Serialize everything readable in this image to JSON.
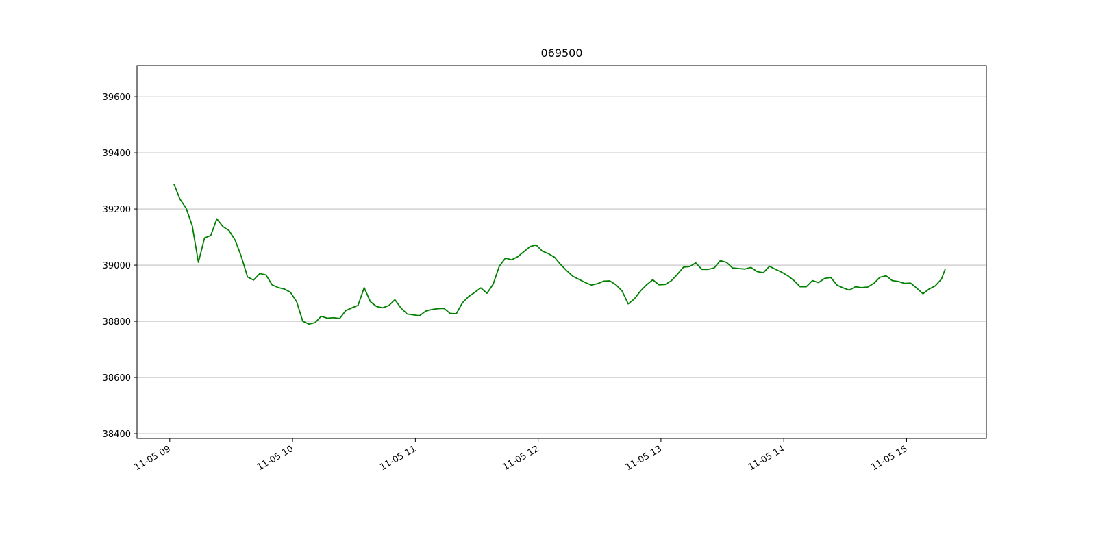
{
  "chart_data": {
    "type": "line",
    "title": "069500",
    "x": [
      "11-05 09:02",
      "11-05 09:05",
      "11-05 09:08",
      "11-05 09:11",
      "11-05 09:14",
      "11-05 09:17",
      "11-05 09:20",
      "11-05 09:23",
      "11-05 09:26",
      "11-05 09:29",
      "11-05 09:32",
      "11-05 09:35",
      "11-05 09:38",
      "11-05 09:41",
      "11-05 09:44",
      "11-05 09:47",
      "11-05 09:50",
      "11-05 09:53",
      "11-05 09:56",
      "11-05 09:59",
      "11-05 10:02",
      "11-05 10:05",
      "11-05 10:08",
      "11-05 10:11",
      "11-05 10:14",
      "11-05 10:17",
      "11-05 10:20",
      "11-05 10:23",
      "11-05 10:26",
      "11-05 10:29",
      "11-05 10:32",
      "11-05 10:35",
      "11-05 10:38",
      "11-05 10:41",
      "11-05 10:44",
      "11-05 10:47",
      "11-05 10:50",
      "11-05 10:53",
      "11-05 10:56",
      "11-05 10:59",
      "11-05 11:02",
      "11-05 11:05",
      "11-05 11:08",
      "11-05 11:11",
      "11-05 11:14",
      "11-05 11:17",
      "11-05 11:20",
      "11-05 11:23",
      "11-05 11:26",
      "11-05 11:29",
      "11-05 11:32",
      "11-05 11:35",
      "11-05 11:38",
      "11-05 11:41",
      "11-05 11:44",
      "11-05 11:47",
      "11-05 11:50",
      "11-05 11:53",
      "11-05 11:56",
      "11-05 11:59",
      "11-05 12:02",
      "11-05 12:05",
      "11-05 12:08",
      "11-05 12:11",
      "11-05 12:14",
      "11-05 12:17",
      "11-05 12:20",
      "11-05 12:23",
      "11-05 12:26",
      "11-05 12:29",
      "11-05 12:32",
      "11-05 12:35",
      "11-05 12:38",
      "11-05 12:41",
      "11-05 12:44",
      "11-05 12:47",
      "11-05 12:50",
      "11-05 12:53",
      "11-05 12:56",
      "11-05 12:59",
      "11-05 13:02",
      "11-05 13:05",
      "11-05 13:08",
      "11-05 13:11",
      "11-05 13:14",
      "11-05 13:17",
      "11-05 13:20",
      "11-05 13:23",
      "11-05 13:26",
      "11-05 13:29",
      "11-05 13:32",
      "11-05 13:35",
      "11-05 13:38",
      "11-05 13:41",
      "11-05 13:44",
      "11-05 13:47",
      "11-05 13:50",
      "11-05 13:53",
      "11-05 13:56",
      "11-05 13:59",
      "11-05 14:02",
      "11-05 14:05",
      "11-05 14:08",
      "11-05 14:11",
      "11-05 14:14",
      "11-05 14:17",
      "11-05 14:20",
      "11-05 14:23",
      "11-05 14:26",
      "11-05 14:29",
      "11-05 14:32",
      "11-05 14:35",
      "11-05 14:38",
      "11-05 14:41",
      "11-05 14:44",
      "11-05 14:47",
      "11-05 14:50",
      "11-05 14:53",
      "11-05 14:56",
      "11-05 14:59",
      "11-05 15:02",
      "11-05 15:05",
      "11-05 15:08",
      "11-05 15:11",
      "11-05 15:14",
      "11-05 15:17",
      "11-05 15:19"
    ],
    "series": [
      {
        "name": "069500",
        "color": "#008000",
        "values": [
          39290,
          39235,
          39203,
          39140,
          39010,
          39097,
          39105,
          39165,
          39137,
          39123,
          39088,
          39030,
          38958,
          38947,
          38970,
          38965,
          38930,
          38920,
          38915,
          38903,
          38870,
          38800,
          38790,
          38795,
          38818,
          38811,
          38813,
          38810,
          38838,
          38848,
          38857,
          38920,
          38870,
          38853,
          38848,
          38856,
          38877,
          38847,
          38826,
          38823,
          38820,
          38836,
          38842,
          38845,
          38846,
          38828,
          38827,
          38866,
          38888,
          38903,
          38919,
          38900,
          38932,
          38996,
          39025,
          39019,
          39030,
          39048,
          39066,
          39072,
          39050,
          39041,
          39028,
          39002,
          38980,
          38960,
          38949,
          38938,
          38929,
          38934,
          38943,
          38944,
          38930,
          38908,
          38862,
          38880,
          38908,
          38930,
          38948,
          38930,
          38931,
          38944,
          38967,
          38993,
          38995,
          39008,
          38985,
          38985,
          38990,
          39016,
          39010,
          38990,
          38988,
          38986,
          38992,
          38977,
          38973,
          38996,
          38985,
          38975,
          38962,
          38945,
          38923,
          38923,
          38945,
          38938,
          38953,
          38956,
          38929,
          38919,
          38911,
          38923,
          38920,
          38922,
          38935,
          38957,
          38962,
          38945,
          38942,
          38935,
          38936,
          38918,
          38898,
          38915,
          38926,
          38950,
          38988
        ]
      }
    ],
    "xlim": [
      "11-05 08:44",
      "11-05 15:39"
    ],
    "xticks": [
      {
        "value": "11-05 09:00",
        "label": "11-05 09"
      },
      {
        "value": "11-05 10:00",
        "label": "11-05 10"
      },
      {
        "value": "11-05 11:00",
        "label": "11-05 11"
      },
      {
        "value": "11-05 12:00",
        "label": "11-05 12"
      },
      {
        "value": "11-05 13:00",
        "label": "11-05 13"
      },
      {
        "value": "11-05 14:00",
        "label": "11-05 14"
      },
      {
        "value": "11-05 15:00",
        "label": "11-05 15"
      }
    ],
    "ylim": [
      38383,
      39710
    ],
    "yticks": [
      38400,
      38600,
      38800,
      39000,
      39200,
      39400,
      39600
    ],
    "grid": "y"
  }
}
